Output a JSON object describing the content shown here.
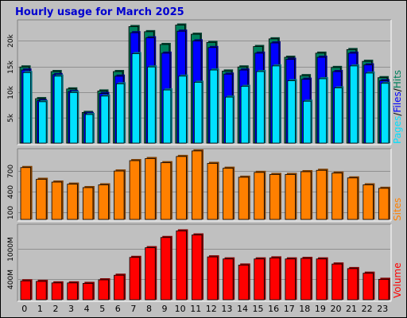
{
  "title": "Hourly usage for March 2025",
  "colors": {
    "title": "#0000d0",
    "hits": "#00805c",
    "files": "#0000ff",
    "pages": "#00e0ff",
    "sites": "#ff8000",
    "volume": "#ff0000",
    "panel_bg": "#c0c0c0",
    "grid": "#909090"
  },
  "labels": {
    "pages": "Pages",
    "files": "Files",
    "hits": "Hits",
    "sites": "Sites",
    "volume": "Volume",
    "sep": "/"
  },
  "chart_data": [
    {
      "type": "bar",
      "panel": "hits-files-pages",
      "categories": [
        "0",
        "1",
        "2",
        "3",
        "4",
        "5",
        "6",
        "7",
        "8",
        "9",
        "10",
        "11",
        "12",
        "13",
        "14",
        "15",
        "16",
        "17",
        "18",
        "19",
        "20",
        "21",
        "22",
        "23"
      ],
      "ylim": [
        0,
        23800
      ],
      "yticks": [
        {
          "value": 5000,
          "label": "5k"
        },
        {
          "value": 10000,
          "label": "10k"
        },
        {
          "value": 15000,
          "label": "15k"
        },
        {
          "value": 20000,
          "label": "20k"
        }
      ],
      "series": [
        {
          "name": "Hits",
          "values": [
            14900,
            8700,
            14000,
            10600,
            6000,
            10200,
            14000,
            22800,
            21800,
            19300,
            23100,
            21300,
            19700,
            14100,
            14900,
            18900,
            20400,
            16800,
            13200,
            17600,
            14800,
            18300,
            16000,
            12800
          ]
        },
        {
          "name": "Files",
          "values": [
            14300,
            8300,
            13400,
            10100,
            5800,
            9700,
            13100,
            21600,
            20600,
            17600,
            21900,
            20000,
            18700,
            13500,
            14300,
            17600,
            19600,
            16400,
            12500,
            16800,
            14000,
            17600,
            15300,
            12200
          ]
        },
        {
          "name": "Pages",
          "values": [
            13800,
            8100,
            13100,
            9900,
            5600,
            9200,
            11600,
            17500,
            14900,
            10400,
            13100,
            11900,
            14300,
            9000,
            11100,
            14000,
            15100,
            12200,
            8200,
            12600,
            10800,
            15100,
            13700,
            11700
          ]
        }
      ]
    },
    {
      "type": "bar",
      "panel": "sites",
      "categories": [
        "0",
        "1",
        "2",
        "3",
        "4",
        "5",
        "6",
        "7",
        "8",
        "9",
        "10",
        "11",
        "12",
        "13",
        "14",
        "15",
        "16",
        "17",
        "18",
        "19",
        "20",
        "21",
        "22",
        "23"
      ],
      "ylim": [
        0,
        1000
      ],
      "yticks": [
        {
          "value": 100,
          "label": "100"
        },
        {
          "value": 400,
          "label": "400"
        },
        {
          "value": 700,
          "label": "700"
        }
      ],
      "series": [
        {
          "name": "Sites",
          "values": [
            750,
            580,
            540,
            510,
            460,
            500,
            700,
            850,
            880,
            820,
            910,
            990,
            810,
            740,
            610,
            680,
            650,
            650,
            690,
            710,
            670,
            600,
            500,
            450
          ]
        }
      ]
    },
    {
      "type": "bar",
      "panel": "volume",
      "categories": [
        "0",
        "1",
        "2",
        "3",
        "4",
        "5",
        "6",
        "7",
        "8",
        "9",
        "10",
        "11",
        "12",
        "13",
        "14",
        "15",
        "16",
        "17",
        "18",
        "19",
        "20",
        "21",
        "22",
        "23"
      ],
      "ylim": [
        0,
        1450
      ],
      "yticks": [
        {
          "value": 400,
          "label": "400M"
        },
        {
          "value": 1000,
          "label": "1000M"
        }
      ],
      "series": [
        {
          "name": "Volume",
          "values": [
            370,
            360,
            330,
            330,
            320,
            390,
            480,
            830,
            1020,
            1220,
            1350,
            1270,
            840,
            800,
            680,
            800,
            820,
            800,
            810,
            800,
            700,
            610,
            520,
            400
          ]
        }
      ]
    }
  ]
}
